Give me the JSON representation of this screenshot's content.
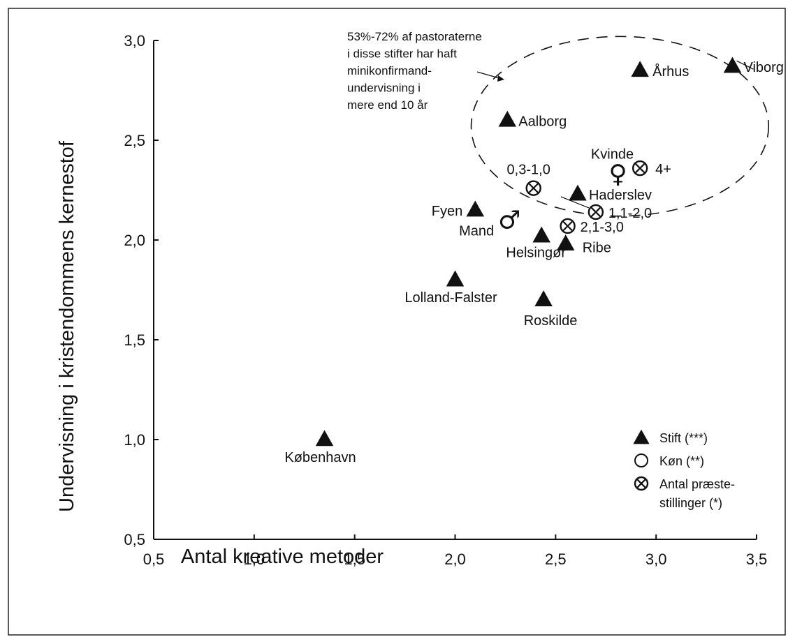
{
  "chart_data": {
    "type": "scatter",
    "title": "",
    "xlabel": "Antal kreative metoder",
    "ylabel": "Undervisning i kristendommens kernestof",
    "xlim": [
      0.5,
      3.5
    ],
    "ylim": [
      0.5,
      3.0
    ],
    "x_ticks": [
      "0,5",
      "1,0",
      "1,5",
      "2,0",
      "2,5",
      "3,0",
      "3,5"
    ],
    "y_ticks": [
      "0,5",
      "1,0",
      "1,5",
      "2,0",
      "2,5",
      "3,0"
    ],
    "grid": false,
    "legend_position": "bottom-right",
    "legend": [
      {
        "marker": "triangle",
        "label": "Stift (***)"
      },
      {
        "marker": "circle",
        "label": "Køn (**)"
      },
      {
        "marker": "circle-x",
        "label": "Antal præste-",
        "label2": "stillinger (*)"
      }
    ],
    "series": [
      {
        "name": "Stift (***)",
        "marker": "triangle",
        "points": [
          {
            "label": "København",
            "x": 1.35,
            "y": 1.0
          },
          {
            "label": "Lolland-Falster",
            "x": 2.0,
            "y": 1.8
          },
          {
            "label": "Roskilde",
            "x": 2.44,
            "y": 1.7
          },
          {
            "label": "Fyen",
            "x": 2.1,
            "y": 2.15
          },
          {
            "label": "Helsingør",
            "x": 2.43,
            "y": 2.02
          },
          {
            "label": "Ribe",
            "x": 2.55,
            "y": 1.98
          },
          {
            "label": "Haderslev",
            "x": 2.61,
            "y": 2.23
          },
          {
            "label": "Aalborg",
            "x": 2.26,
            "y": 2.6
          },
          {
            "label": "Århus",
            "x": 2.92,
            "y": 2.85
          },
          {
            "label": "Viborg",
            "x": 3.38,
            "y": 2.87
          }
        ]
      },
      {
        "name": "Køn (**)",
        "marker": "circle",
        "points": [
          {
            "label": "Mand",
            "symbol": "♂",
            "x": 2.27,
            "y": 2.1
          },
          {
            "label": "Kvinde",
            "symbol": "♀",
            "x": 2.81,
            "y": 2.33
          }
        ]
      },
      {
        "name": "Antal præstestillinger (*)",
        "marker": "circle-x",
        "points": [
          {
            "label": "0,3-1,0",
            "x": 2.39,
            "y": 2.26
          },
          {
            "label": "1,1-2,0",
            "x": 2.7,
            "y": 2.14
          },
          {
            "label": "2,1-3,0",
            "x": 2.56,
            "y": 2.07
          },
          {
            "label": "4+",
            "x": 2.92,
            "y": 2.36
          }
        ]
      }
    ],
    "annotations": {
      "text_lines": [
        "53%-72% af pastoraterne",
        "i disse stifter har haft",
        "minikonfirmand-",
        "undervisning i",
        "mere end 10 år"
      ],
      "ellipse": {
        "cx": 2.82,
        "cy": 2.57,
        "rx": 0.74,
        "ry": 0.45
      }
    }
  }
}
